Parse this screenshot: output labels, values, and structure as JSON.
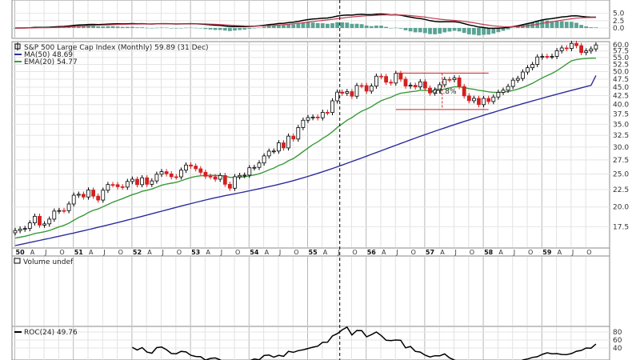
{
  "chart_data": {
    "type": "candlestick",
    "title": "S&P 500 Large Cap Index (Monthly) 59.89 (31 Dec)",
    "indicators": {
      "ma": {
        "label": "MA(50) 48.69",
        "color": "#2c2c9e"
      },
      "ema": {
        "label": "EMA(20) 54.77",
        "color": "#3a9a3a"
      },
      "volume": {
        "label": "Volume undef"
      },
      "roc": {
        "label": "ROC(24) 49.76"
      }
    },
    "colors": {
      "up": "#ffffff",
      "down": "#d42020",
      "outline": "#000000",
      "macd_hist": "#5aa394",
      "macd_line": "#000000",
      "signal_line": "#c23a4e",
      "annotation": "#d42020"
    },
    "price_axis": {
      "scale": "log",
      "range": [
        15.4,
        60.6
      ],
      "ticks": [
        17.5,
        20.0,
        22.5,
        25.0,
        27.5,
        30.0,
        32.5,
        35.0,
        37.5,
        40.0,
        42.5,
        45.0,
        47.5,
        50.0,
        52.5,
        55.0,
        57.5,
        60.0
      ],
      "tick_labels": [
        "17.5",
        "20.0",
        "22.5",
        "25.0",
        "27.5",
        "30.0",
        "32.5",
        "35.0",
        "37.5",
        "40.0",
        "42.5",
        "45.0",
        "47.5",
        "50.0",
        "52.5",
        "55.0",
        "57.5",
        "60.0"
      ]
    },
    "macd_axis": {
      "range": [
        -3,
        9
      ],
      "ticks": [
        0,
        2.5,
        5.0
      ],
      "tick_labels": [
        "0.0",
        "2.5",
        "5.0"
      ]
    },
    "roc_axis": {
      "range": [
        10,
        92
      ],
      "ticks": [
        40,
        60,
        80
      ],
      "tick_labels": [
        "40",
        "60",
        "80"
      ]
    },
    "x_axis": {
      "start": "1950-01",
      "end": "1959-12",
      "labels": [
        "50",
        "A",
        "J",
        "O",
        "51",
        "A",
        "J",
        "O",
        "52",
        "A",
        "J",
        "O",
        "53",
        "A",
        "J",
        "O",
        "54",
        "A",
        "J",
        "O",
        "55",
        "A",
        "J",
        "O",
        "56",
        "A",
        "J",
        "O",
        "57",
        "A",
        "J",
        "O",
        "58",
        "A",
        "J",
        "O",
        "59",
        "A",
        "J",
        "O"
      ],
      "label_months": [
        "1950-01",
        "1950-04",
        "1950-07",
        "1950-10",
        "1951-01",
        "1951-04",
        "1951-07",
        "1951-10",
        "1952-01",
        "1952-04",
        "1952-07",
        "1952-10",
        "1953-01",
        "1953-04",
        "1953-07",
        "1953-10",
        "1954-01",
        "1954-04",
        "1954-07",
        "1954-10",
        "1955-01",
        "1955-04",
        "1955-07",
        "1955-10",
        "1956-01",
        "1956-04",
        "1956-07",
        "1956-10",
        "1957-01",
        "1957-04",
        "1957-07",
        "1957-10",
        "1958-01",
        "1958-04",
        "1958-07",
        "1958-10",
        "1959-01",
        "1959-04",
        "1959-07",
        "1959-10"
      ]
    },
    "marker_month": "1955-08",
    "annotation": {
      "text": "-21.8%",
      "high": 49.5,
      "low": 38.7,
      "from": "1956-07",
      "to": "1958-02"
    },
    "closes": [
      17.05,
      17.22,
      17.29,
      17.96,
      18.78,
      17.69,
      17.84,
      18.42,
      19.45,
      19.53,
      19.51,
      20.41,
      21.66,
      21.8,
      21.4,
      22.43,
      21.52,
      20.96,
      22.4,
      23.28,
      23.26,
      22.94,
      22.88,
      23.77,
      24.14,
      23.26,
      24.37,
      23.32,
      23.86,
      24.96,
      25.4,
      25.03,
      24.54,
      24.52,
      25.66,
      26.57,
      26.38,
      25.9,
      25.29,
      24.62,
      24.54,
      24.14,
      24.75,
      23.32,
      22.71,
      24.54,
      24.76,
      24.81,
      26.08,
      26.15,
      26.94,
      28.26,
      29.19,
      29.21,
      30.88,
      29.83,
      32.31,
      31.68,
      34.24,
      35.98,
      36.63,
      36.76,
      36.58,
      37.96,
      37.91,
      41.03,
      43.52,
      43.18,
      43.67,
      42.34,
      45.51,
      45.48,
      43.82,
      45.34,
      48.48,
      48.38,
      46.54,
      46.27,
      49.39,
      47.51,
      45.35,
      45.58,
      45.08,
      46.67,
      44.72,
      43.26,
      44.11,
      45.74,
      47.43,
      47.37,
      47.91,
      45.22,
      42.42,
      41.06,
      41.72,
      39.99,
      41.7,
      40.84,
      42.1,
      43.44,
      44.09,
      45.24,
      47.19,
      47.75,
      49.87,
      51.33,
      52.48,
      55.21,
      55.42,
      55.41,
      55.44,
      57.59,
      58.68,
      58.47,
      60.51,
      59.6,
      56.88,
      57.52,
      58.28,
      59.89
    ],
    "ema20": [
      16.2,
      16.3,
      16.41,
      16.54,
      16.71,
      16.81,
      16.91,
      17.06,
      17.27,
      17.48,
      17.66,
      17.92,
      18.27,
      18.62,
      18.9,
      19.27,
      19.55,
      19.73,
      20.04,
      20.34,
      20.65,
      20.91,
      21.16,
      21.45,
      21.74,
      21.94,
      22.24,
      22.39,
      22.6,
      22.87,
      23.16,
      23.36,
      23.49,
      23.63,
      23.88,
      24.16,
      24.41,
      24.59,
      24.7,
      24.74,
      24.77,
      24.76,
      24.76,
      24.62,
      24.44,
      24.46,
      24.49,
      24.52,
      24.69,
      24.84,
      25.05,
      25.35,
      25.7,
      26.02,
      26.48,
      26.81,
      27.35,
      27.76,
      28.39,
      29.1,
      29.82,
      30.51,
      31.08,
      31.83,
      32.46,
      33.28,
      34.26,
      35.11,
      35.98,
      36.63,
      37.48,
      38.25,
      38.79,
      39.42,
      40.29,
      41.05,
      41.57,
      42.02,
      42.72,
      43.18,
      43.39,
      43.62,
      43.77,
      44.06,
      44.05,
      43.93,
      43.94,
      44.12,
      44.44,
      44.77,
      45.12,
      45.1,
      44.87,
      44.56,
      44.37,
      44.05,
      43.86,
      43.61,
      43.46,
      43.47,
      43.54,
      43.7,
      44.04,
      44.41,
      44.93,
      45.54,
      46.21,
      47.06,
      47.91,
      48.66,
      49.4,
      50.29,
      51.42,
      52.61,
      53.79,
      54.25,
      54.49,
      54.63,
      54.77,
      54.77
    ],
    "ma50": [
      15.4,
      15.51,
      15.62,
      15.73,
      15.84,
      15.95,
      16.06,
      16.17,
      16.29,
      16.41,
      16.53,
      16.65,
      16.77,
      16.9,
      17.03,
      17.16,
      17.29,
      17.43,
      17.57,
      17.71,
      17.85,
      18,
      18.15,
      18.3,
      18.46,
      18.62,
      18.78,
      18.94,
      19.1,
      19.27,
      19.44,
      19.61,
      19.78,
      19.95,
      20.12,
      20.29,
      20.46,
      20.63,
      20.8,
      20.97,
      21.13,
      21.29,
      21.44,
      21.59,
      21.73,
      21.87,
      22.01,
      22.16,
      22.31,
      22.47,
      22.63,
      22.79,
      22.96,
      23.13,
      23.31,
      23.5,
      23.7,
      23.91,
      24.13,
      24.36,
      24.6,
      24.85,
      25.11,
      25.38,
      25.66,
      25.95,
      26.25,
      26.56,
      26.88,
      27.2,
      27.53,
      27.87,
      28.21,
      28.56,
      28.91,
      29.27,
      29.63,
      30,
      30.37,
      30.74,
      31.12,
      31.5,
      31.88,
      32.26,
      32.64,
      33.02,
      33.4,
      33.78,
      34.16,
      34.54,
      34.92,
      35.3,
      35.68,
      36.06,
      36.44,
      36.82,
      37.2,
      37.58,
      37.96,
      38.34,
      38.72,
      39.1,
      39.48,
      39.86,
      40.24,
      40.62,
      41,
      41.38,
      41.76,
      42.14,
      42.52,
      42.9,
      43.28,
      43.66,
      44.04,
      44.42,
      44.8,
      45.18,
      45.56,
      48.69
    ]
  }
}
